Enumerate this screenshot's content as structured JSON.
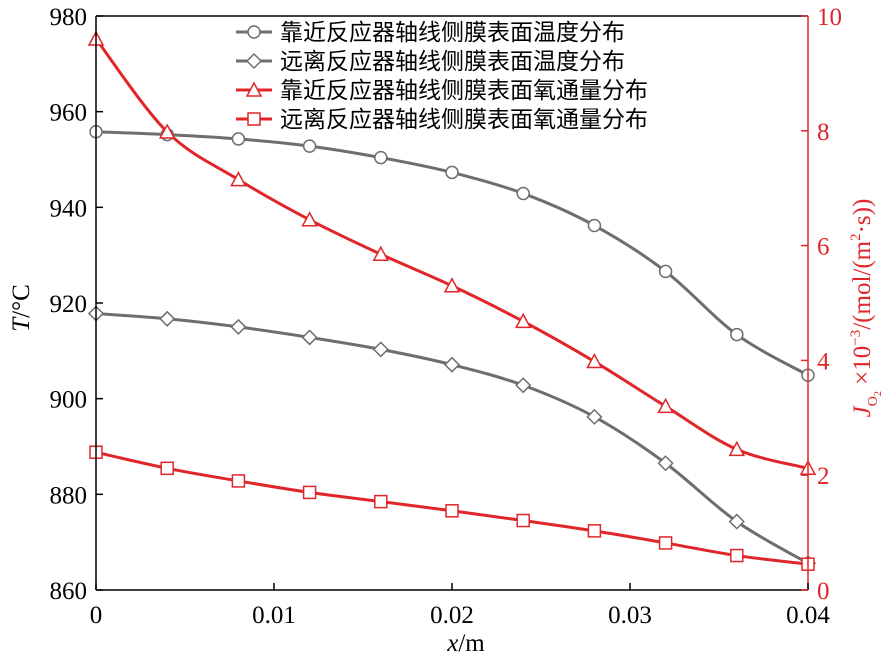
{
  "chart_data": {
    "type": "line",
    "x": [
      0,
      0.004,
      0.008,
      0.012,
      0.016,
      0.02,
      0.024,
      0.028,
      0.032,
      0.036,
      0.04
    ],
    "xlim": [
      0,
      0.04
    ],
    "x_ticks": [
      0,
      0.01,
      0.02,
      0.03,
      0.04
    ],
    "x_tick_labels": [
      "0",
      "0.01",
      "0.02",
      "0.03",
      "0.04"
    ],
    "xlabel": {
      "var": "x",
      "unit": "/m"
    },
    "y_left": {
      "lim": [
        860,
        980
      ],
      "ticks": [
        860,
        880,
        900,
        920,
        940,
        960,
        980
      ],
      "tick_labels": [
        "860",
        "880",
        "900",
        "920",
        "940",
        "960",
        "980"
      ],
      "label": {
        "var": "T",
        "unit": "/°C"
      },
      "color": "#000000"
    },
    "y_right": {
      "lim": [
        0,
        10
      ],
      "ticks": [
        0,
        2,
        4,
        6,
        8,
        10
      ],
      "tick_labels": [
        "0",
        "2",
        "4",
        "6",
        "8",
        "10"
      ],
      "label": {
        "var": "J",
        "sub": "O",
        "subsub": "2",
        "rest": " ×10",
        "sup": "−3",
        "unit_a": "/(mol/(m",
        "sup2": "2",
        "unit_b": "·s))"
      },
      "color": "#e0262a"
    },
    "series": [
      {
        "name": "靠近反应器轴线侧膜表面温度分布",
        "axis": "left",
        "color": "#6e6e6e",
        "marker": "circle",
        "values": [
          955.8,
          955.2,
          954.3,
          952.8,
          950.4,
          947.3,
          942.9,
          936.2,
          926.6,
          913.4,
          904.9
        ]
      },
      {
        "name": "远离反应器轴线侧膜表面温度分布",
        "axis": "left",
        "color": "#6e6e6e",
        "marker": "diamond",
        "values": [
          917.8,
          916.7,
          915.0,
          912.8,
          910.3,
          907.1,
          902.8,
          896.2,
          886.5,
          874.3,
          865.6
        ]
      },
      {
        "name": "靠近反应器轴线侧膜表面氧通量分布",
        "axis": "right",
        "color": "#e0262a",
        "marker": "triangle",
        "values": [
          9.6,
          7.98,
          7.15,
          6.45,
          5.85,
          5.3,
          4.68,
          3.98,
          3.2,
          2.45,
          2.12
        ]
      },
      {
        "name": "远离反应器轴线侧膜表面氧通量分布",
        "axis": "right",
        "color": "#e0262a",
        "marker": "square",
        "values": [
          2.4,
          2.12,
          1.9,
          1.7,
          1.54,
          1.38,
          1.21,
          1.03,
          0.82,
          0.6,
          0.45
        ]
      }
    ],
    "legend_position": "top-right",
    "grid": false
  }
}
